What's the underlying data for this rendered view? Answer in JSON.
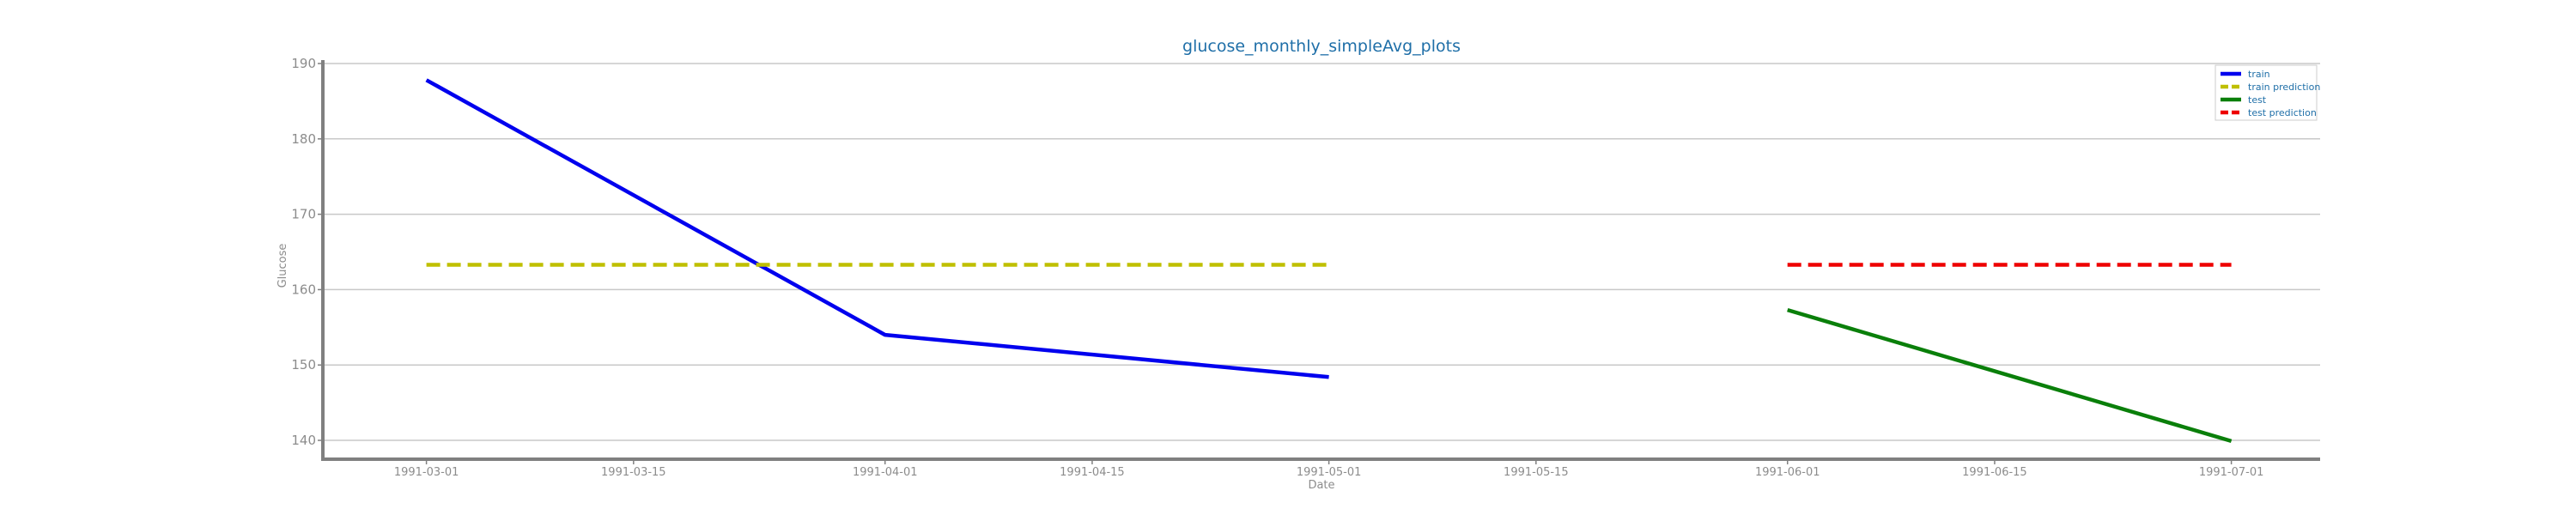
{
  "chart_data": {
    "type": "line",
    "title": "glucose_monthly_simpleAvg_plots",
    "xlabel": "Date",
    "ylabel": "Glucose",
    "x_ticks": [
      "1991-03-01",
      "1991-03-15",
      "1991-04-01",
      "1991-04-15",
      "1991-05-01",
      "1991-05-15",
      "1991-06-01",
      "1991-06-15",
      "1991-07-01"
    ],
    "y_ticks": [
      140,
      150,
      160,
      170,
      180,
      190
    ],
    "xlim": [
      "1991-02-22",
      "1991-07-07"
    ],
    "ylim": [
      137.5,
      190
    ],
    "grid": "horizontal",
    "legend_position": "top-right",
    "series": [
      {
        "name": "train",
        "color": "#0000ee",
        "style": "solid",
        "x": [
          "1991-03-01",
          "1991-04-01",
          "1991-05-01"
        ],
        "y": [
          187.8,
          154.0,
          148.4
        ]
      },
      {
        "name": "train prediction",
        "color": "#bfbf00",
        "style": "dashed",
        "x": [
          "1991-03-01",
          "1991-05-01"
        ],
        "y": [
          163.3,
          163.3
        ]
      },
      {
        "name": "test",
        "color": "#0a7f0a",
        "style": "solid",
        "x": [
          "1991-06-01",
          "1991-07-01"
        ],
        "y": [
          157.3,
          139.9
        ]
      },
      {
        "name": "test prediction",
        "color": "#ee0000",
        "style": "dashed",
        "x": [
          "1991-06-01",
          "1991-07-01"
        ],
        "y": [
          163.3,
          163.3
        ]
      }
    ]
  }
}
